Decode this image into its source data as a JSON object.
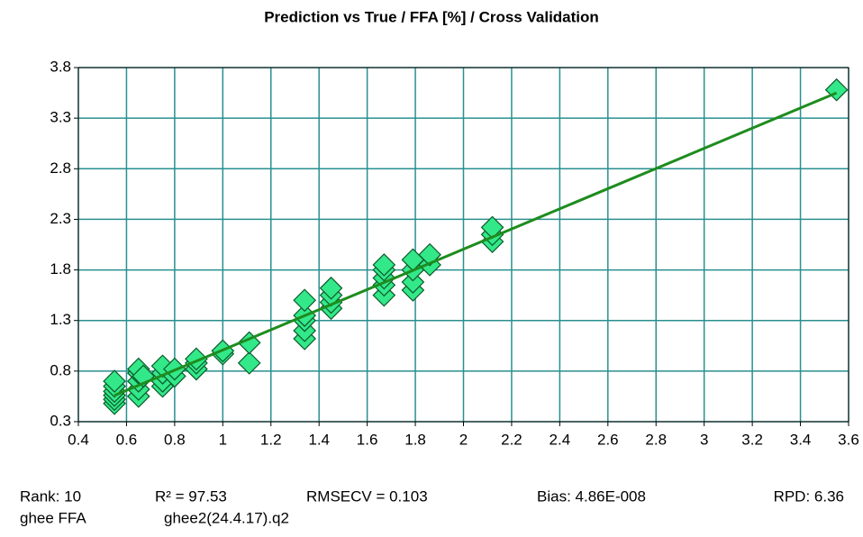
{
  "chart_data": {
    "type": "scatter",
    "title": "Prediction vs True  /  FFA [%]  /  Cross Validation",
    "series": [
      {
        "color": "#33e889",
        "edge": "#0b5a2a",
        "x": [
          0.55,
          0.55,
          0.55,
          0.55,
          0.55,
          0.55,
          0.65,
          0.65,
          0.65,
          0.65,
          0.65,
          0.67,
          0.75,
          0.75,
          0.75,
          0.75,
          0.8,
          0.8,
          0.89,
          0.89,
          0.89,
          1.0,
          1.0,
          1.11,
          1.11,
          1.34,
          1.34,
          1.34,
          1.34,
          1.34,
          1.45,
          1.45,
          1.45,
          1.45,
          1.67,
          1.67,
          1.67,
          1.67,
          1.67,
          1.79,
          1.79,
          1.79,
          1.79,
          1.86,
          1.86,
          2.12,
          2.12,
          2.12,
          3.55
        ],
        "values": [
          0.48,
          0.52,
          0.56,
          0.6,
          0.65,
          0.7,
          0.55,
          0.62,
          0.7,
          0.78,
          0.82,
          0.75,
          0.65,
          0.7,
          0.78,
          0.85,
          0.75,
          0.82,
          0.82,
          0.88,
          0.92,
          0.97,
          1.0,
          0.88,
          1.08,
          1.12,
          1.2,
          1.3,
          1.35,
          1.5,
          1.42,
          1.48,
          1.55,
          1.62,
          1.55,
          1.65,
          1.72,
          1.8,
          1.85,
          1.6,
          1.68,
          1.8,
          1.9,
          1.85,
          1.95,
          2.08,
          2.15,
          2.22,
          3.58
        ]
      }
    ],
    "fit_line": {
      "color": "#1e8c1e",
      "x": [
        0.55,
        3.55
      ],
      "values": [
        0.56,
        3.55
      ]
    },
    "xlim": [
      0.4,
      3.6
    ],
    "xticks": [
      0.4,
      0.6,
      0.8,
      1,
      1.2,
      1.4,
      1.6,
      1.8,
      2,
      2.2,
      2.4,
      2.6,
      2.8,
      3,
      3.2,
      3.4,
      3.6
    ],
    "ylim": [
      0.3,
      3.8
    ],
    "yticks": [
      0.3,
      0.8,
      1.3,
      1.8,
      2.3,
      2.8,
      3.3,
      3.8
    ],
    "grid": true,
    "grid_color": "#2a8f8f",
    "stats": [
      "Rank: 10",
      "R² = 97.53",
      "RMSECV = 0.103",
      "Bias: 4.86E-008",
      "RPD: 6.36"
    ],
    "footer": [
      "ghee FFA",
      "ghee2(24.4.17).q2"
    ]
  }
}
